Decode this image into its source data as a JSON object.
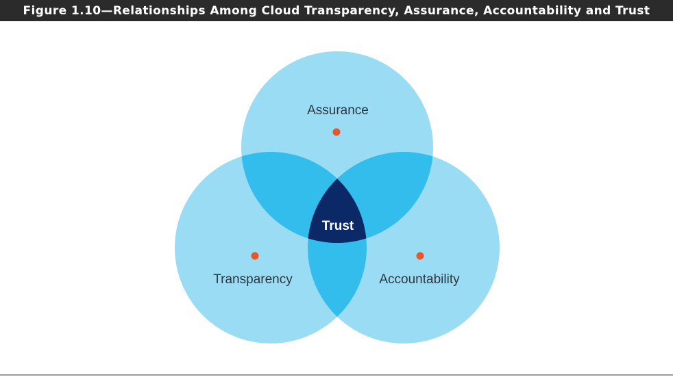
{
  "figure": {
    "title": "Figure 1.10—Relationships Among Cloud Transparency, Assurance, Accountability and Trust"
  },
  "venn": {
    "sets": [
      {
        "key": "assurance",
        "label": "Assurance"
      },
      {
        "key": "transparency",
        "label": "Transparency"
      },
      {
        "key": "accountability",
        "label": "Accountability"
      }
    ],
    "center_label": "Trust"
  },
  "colors": {
    "title_bar": "#2b2b2b",
    "circle": "#9adcf4",
    "pair_overlap": "#33bdec",
    "center": "#0b2966",
    "dot": "#e8572a",
    "rule": "#9a9a9a"
  }
}
